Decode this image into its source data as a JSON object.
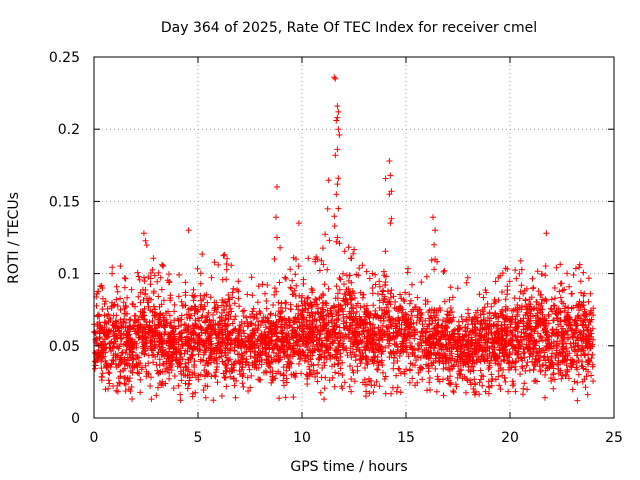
{
  "chart_data": {
    "type": "scatter",
    "title": "Day 364 of 2025, Rate Of TEC Index for receiver cmel",
    "xlabel": "GPS time / hours",
    "ylabel": "ROTI / TECUs",
    "xlim": [
      0,
      25
    ],
    "ylim": [
      0,
      0.25
    ],
    "xticks": [
      0,
      5,
      10,
      15,
      20,
      25
    ],
    "xtick_labels": [
      "0",
      "5",
      "10",
      "15",
      "20",
      "25"
    ],
    "yticks": [
      0,
      0.05,
      0.1,
      0.15,
      0.2,
      0.25
    ],
    "ytick_labels": [
      "0",
      "0.05",
      "0.1",
      "0.15",
      "0.2",
      "0.25"
    ],
    "grid": true,
    "marker": "plus",
    "color": "#ff0000",
    "series": [
      {
        "name": "ROTI",
        "x_range": [
          0,
          24
        ],
        "envelope": {
          "x": [
            0,
            0.5,
            1,
            1.5,
            2,
            2.5,
            3,
            3.5,
            4,
            4.5,
            5,
            5.5,
            6,
            6.5,
            7,
            7.5,
            8,
            8.5,
            9,
            9.5,
            10,
            10.5,
            11,
            11.5,
            12,
            12.5,
            13,
            13.5,
            14,
            14.5,
            15,
            15.5,
            16,
            16.5,
            17,
            17.5,
            18,
            18.5,
            19,
            19.5,
            20,
            20.5,
            21,
            21.5,
            22,
            22.5,
            23,
            23.5,
            24
          ],
          "low": [
            0.02,
            0.012,
            0.01,
            0.015,
            0.012,
            0.01,
            0.015,
            0.012,
            0.01,
            0.012,
            0.012,
            0.012,
            0.01,
            0.015,
            0.012,
            0.01,
            0.015,
            0.015,
            0.012,
            0.015,
            0.012,
            0.015,
            0.012,
            0.015,
            0.015,
            0.015,
            0.015,
            0.015,
            0.015,
            0.015,
            0.02,
            0.015,
            0.015,
            0.015,
            0.012,
            0.015,
            0.015,
            0.015,
            0.015,
            0.015,
            0.015,
            0.015,
            0.015,
            0.015,
            0.012,
            0.012,
            0.012,
            0.012,
            0.015
          ],
          "typ_high": [
            0.08,
            0.09,
            0.1,
            0.09,
            0.09,
            0.11,
            0.1,
            0.09,
            0.09,
            0.095,
            0.1,
            0.09,
            0.1,
            0.1,
            0.085,
            0.09,
            0.09,
            0.09,
            0.1,
            0.1,
            0.11,
            0.1,
            0.1,
            0.09,
            0.11,
            0.11,
            0.1,
            0.1,
            0.11,
            0.1,
            0.1,
            0.09,
            0.09,
            0.09,
            0.09,
            0.08,
            0.085,
            0.09,
            0.09,
            0.095,
            0.09,
            0.1,
            0.1,
            0.1,
            0.09,
            0.1,
            0.1,
            0.1,
            0.1
          ],
          "peak": [
            0.09,
            0.1,
            0.12,
            0.1,
            0.1,
            0.128,
            0.12,
            0.1,
            0.11,
            0.1,
            0.13,
            0.1,
            0.12,
            0.12,
            0.1,
            0.1,
            0.1,
            0.1,
            0.16,
            0.11,
            0.135,
            0.11,
            0.12,
            0.235,
            0.12,
            0.12,
            0.11,
            0.11,
            0.178,
            0.12,
            0.11,
            0.1,
            0.1,
            0.138,
            0.1,
            0.095,
            0.1,
            0.1,
            0.11,
            0.1,
            0.11,
            0.11,
            0.11,
            0.1,
            0.128,
            0.11,
            0.11,
            0.11,
            0.115
          ]
        },
        "outliers": [
          {
            "x": 8.8,
            "y": 0.16
          },
          {
            "x": 8.75,
            "y": 0.139
          },
          {
            "x": 8.8,
            "y": 0.125
          },
          {
            "x": 11.55,
            "y": 0.236
          },
          {
            "x": 11.6,
            "y": 0.235
          },
          {
            "x": 11.7,
            "y": 0.216
          },
          {
            "x": 11.75,
            "y": 0.212
          },
          {
            "x": 11.7,
            "y": 0.208
          },
          {
            "x": 11.65,
            "y": 0.206
          },
          {
            "x": 11.75,
            "y": 0.2
          },
          {
            "x": 11.8,
            "y": 0.196
          },
          {
            "x": 11.7,
            "y": 0.186
          },
          {
            "x": 11.6,
            "y": 0.182
          },
          {
            "x": 11.75,
            "y": 0.166
          },
          {
            "x": 11.7,
            "y": 0.162
          },
          {
            "x": 11.65,
            "y": 0.155
          },
          {
            "x": 11.75,
            "y": 0.145
          },
          {
            "x": 11.7,
            "y": 0.125
          },
          {
            "x": 11.65,
            "y": 0.122
          },
          {
            "x": 14.2,
            "y": 0.178
          },
          {
            "x": 14.25,
            "y": 0.168
          },
          {
            "x": 14.3,
            "y": 0.157
          },
          {
            "x": 14.2,
            "y": 0.155
          },
          {
            "x": 14.3,
            "y": 0.138
          },
          {
            "x": 14.25,
            "y": 0.135
          },
          {
            "x": 16.3,
            "y": 0.139
          },
          {
            "x": 16.4,
            "y": 0.13
          },
          {
            "x": 16.35,
            "y": 0.12
          },
          {
            "x": 16.4,
            "y": 0.11
          },
          {
            "x": 2.4,
            "y": 0.128
          },
          {
            "x": 4.55,
            "y": 0.13
          },
          {
            "x": 9.85,
            "y": 0.135
          },
          {
            "x": 21.75,
            "y": 0.128
          }
        ]
      }
    ]
  }
}
